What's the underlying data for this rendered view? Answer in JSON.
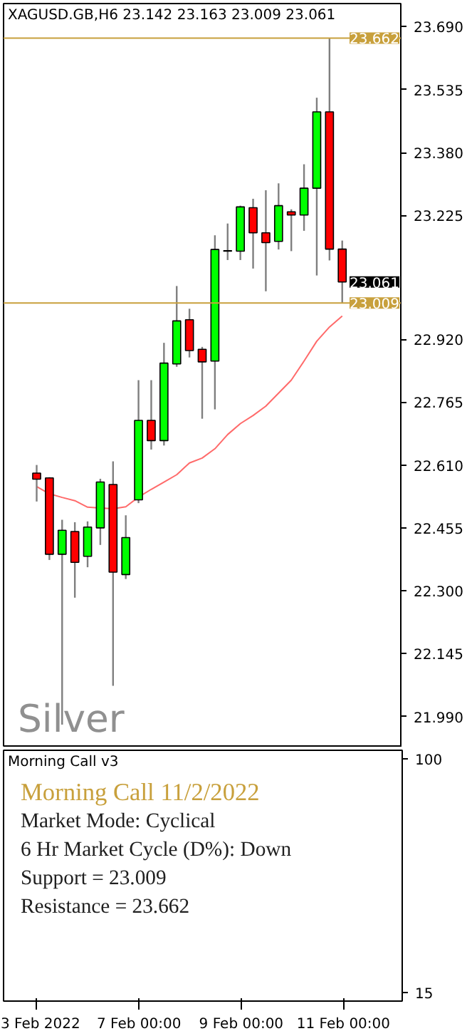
{
  "chart_data": [
    {
      "type": "candlestick",
      "title": "XAGUSD.GB,H6  23.142 23.163 23.009 23.061",
      "ohlc": [
        [
          22.59,
          22.61,
          22.52,
          22.575
        ],
        [
          22.578,
          22.58,
          22.376,
          22.39
        ],
        [
          22.39,
          22.475,
          21.97,
          22.449
        ],
        [
          22.446,
          22.469,
          22.283,
          22.37
        ],
        [
          22.385,
          22.471,
          22.358,
          22.457
        ],
        [
          22.455,
          22.576,
          22.413,
          22.568
        ],
        [
          22.562,
          22.619,
          22.066,
          22.346
        ],
        [
          22.34,
          22.486,
          22.329,
          22.431
        ],
        [
          22.524,
          22.819,
          22.516,
          22.72
        ],
        [
          22.72,
          22.819,
          22.648,
          22.67
        ],
        [
          22.67,
          22.911,
          22.658,
          22.861
        ],
        [
          22.859,
          23.051,
          22.852,
          22.965
        ],
        [
          22.968,
          22.995,
          22.875,
          22.892
        ],
        [
          22.895,
          22.901,
          22.724,
          22.864
        ],
        [
          22.866,
          23.176,
          22.747,
          23.141
        ],
        [
          23.137,
          23.205,
          23.115,
          23.138
        ],
        [
          23.137,
          23.249,
          23.115,
          23.246
        ],
        [
          23.244,
          23.266,
          23.094,
          23.182
        ],
        [
          23.182,
          23.287,
          23.038,
          23.158
        ],
        [
          23.161,
          23.304,
          23.141,
          23.249
        ],
        [
          23.234,
          23.24,
          23.137,
          23.226
        ],
        [
          23.226,
          23.351,
          23.187,
          23.292
        ],
        [
          23.292,
          23.515,
          23.077,
          23.48
        ],
        [
          23.48,
          23.662,
          23.114,
          23.142
        ],
        [
          23.142,
          23.163,
          23.009,
          23.061
        ]
      ],
      "colors": [
        "#ff0000",
        "#ff0000",
        "#00ff00",
        "#ff0000",
        "#00ff00",
        "#00ff00",
        "#ff0000",
        "#00ff00",
        "#00ff00",
        "#ff0000",
        "#00ff00",
        "#00ff00",
        "#ff0000",
        "#ff0000",
        "#00ff00",
        "#00ff00",
        "#00ff00",
        "#ff0000",
        "#ff0000",
        "#00ff00",
        "#ff0000",
        "#00ff00",
        "#00ff00",
        "#ff0000",
        "#ff0000"
      ],
      "series": [
        {
          "type": "line",
          "color": "#ff6a6a",
          "values": [
            22.557,
            22.539,
            22.53,
            22.522,
            22.506,
            22.504,
            22.502,
            22.507,
            22.531,
            22.55,
            22.568,
            22.586,
            22.615,
            22.627,
            22.65,
            22.685,
            22.712,
            22.732,
            22.755,
            22.787,
            22.819,
            22.866,
            22.915,
            22.95,
            22.977
          ]
        }
      ],
      "ylim": [
        21.914,
        23.747
      ],
      "yticks": [
        {
          "value": 23.69,
          "label": "23.690"
        },
        {
          "value": 23.535,
          "label": "23.535"
        },
        {
          "value": 23.38,
          "label": "23.380"
        },
        {
          "value": 23.225,
          "label": "23.225"
        },
        {
          "value": 22.92,
          "label": "22.920"
        },
        {
          "value": 22.765,
          "label": "22.765"
        },
        {
          "value": 22.61,
          "label": "22.610"
        },
        {
          "value": 22.455,
          "label": "22.455"
        },
        {
          "value": 22.3,
          "label": "22.300"
        },
        {
          "value": 22.145,
          "label": "22.145"
        },
        {
          "value": 21.99,
          "label": "21.990"
        }
      ],
      "ref_lines": [
        {
          "axis": "y",
          "value": 23.662,
          "label": "23.662",
          "color": "#c8a03c"
        },
        {
          "axis": "y",
          "value": 23.009,
          "label": "23.009",
          "color": "#c8a03c"
        }
      ],
      "annotations": [
        "23.061",
        "Silver"
      ],
      "tick_labels": "y"
    },
    {
      "type": "other",
      "title": "Morning Call v3",
      "categories": [
        "3 Feb 2022",
        null,
        null,
        null,
        null,
        null,
        null,
        null,
        "7 Feb 00:00",
        null,
        null,
        null,
        null,
        null,
        null,
        null,
        "9 Feb 00:00",
        null,
        null,
        null,
        null,
        null,
        null,
        null,
        "11 Feb 00:00"
      ],
      "annotations": [
        "Morning Call 11/2/2022",
        "Market Mode: Cyclical",
        "6 Hr Market Cycle (D%): Down",
        "Support = 23.009",
        "Resistance = 23.662",
        "100",
        "15"
      ]
    }
  ]
}
